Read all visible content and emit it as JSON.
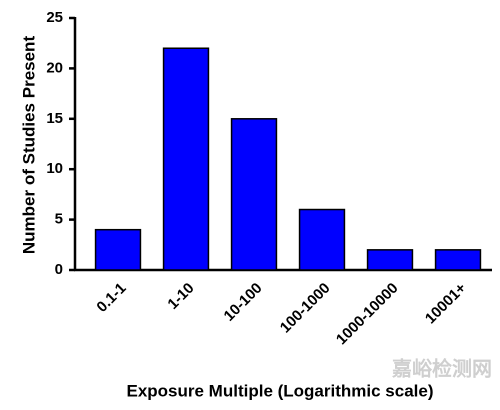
{
  "chart_data": {
    "type": "bar",
    "categories": [
      "0.1-1",
      "1-10",
      "10-100",
      "100-1000",
      "1000-10000",
      "10001+"
    ],
    "values": [
      4,
      22,
      15,
      6,
      2,
      2
    ],
    "color": "#0000ff",
    "ylim": [
      0,
      25
    ],
    "yticks": [
      0,
      5,
      10,
      15,
      20,
      25
    ],
    "y_label": "Number of Studies Present",
    "x_label": "Exposure Multiple (Logarithmic scale)",
    "watermark": "嘉峪检测网",
    "grid": false
  }
}
